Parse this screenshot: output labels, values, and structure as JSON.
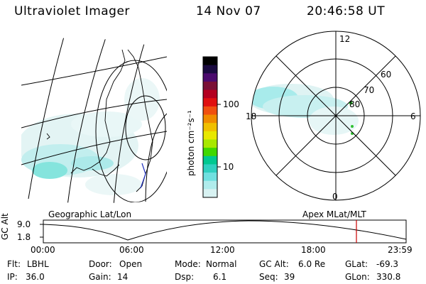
{
  "header": {
    "title": "Ultraviolet Imager",
    "date": "14 Nov 07",
    "time": "20:46:58 UT"
  },
  "colorbar": {
    "unit_label": "photon cm⁻²s⁻¹",
    "ticks": [
      "100",
      "10"
    ],
    "colors": [
      "#000000",
      "#1a0a40",
      "#4b0a6e",
      "#7a1036",
      "#b40020",
      "#e01010",
      "#f05010",
      "#f08c00",
      "#f0c000",
      "#e8e800",
      "#a8e800",
      "#40d800",
      "#00c890",
      "#30d0c0",
      "#70e0e0",
      "#b0ecec",
      "#d8f2f2"
    ]
  },
  "left_map": {
    "caption": "Geographic Lat/Lon"
  },
  "right_map": {
    "caption": "Apex MLat/MLT",
    "mlt_labels": {
      "top": "12",
      "bottom": "0",
      "left": "18",
      "right": "6"
    },
    "lat_labels": [
      "60",
      "70",
      "80"
    ]
  },
  "altitude_plot": {
    "ylabel": "GC Alt",
    "yticks": [
      "9.0",
      "1.8"
    ],
    "xticks": [
      "00:00",
      "06:00",
      "12:00",
      "18:00",
      "23:59"
    ],
    "marker_color": "#cc0000"
  },
  "status": {
    "row1": {
      "flt_label": "Flt:",
      "flt_value": "LBHL",
      "door_label": "Door:",
      "door_value": "Open",
      "mode_label": "Mode:",
      "mode_value": "Normal",
      "gcalt_label": "GC Alt:",
      "gcalt_value": "6.0 Re",
      "glat_label": "GLat:",
      "glat_value": "-69.3"
    },
    "row2": {
      "ip_label": "IP:",
      "ip_value": "36.0",
      "gain_label": "Gain:",
      "gain_value": "14",
      "dsp_label": "Dsp:",
      "dsp_value": "6.1",
      "seq_label": "Seq:",
      "seq_value": "39",
      "glon_label": "GLon:",
      "glon_value": "330.8"
    }
  }
}
